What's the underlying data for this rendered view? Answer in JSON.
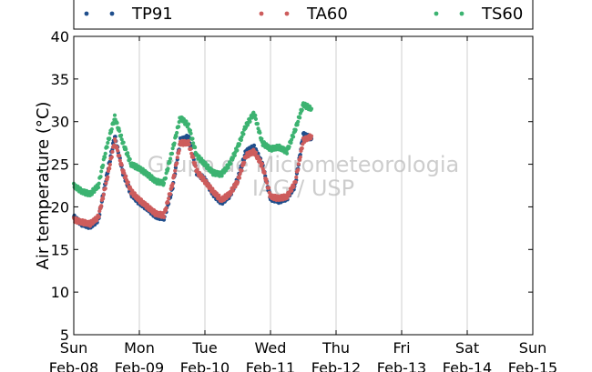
{
  "chart_data": {
    "type": "scatter",
    "title": "",
    "xlabel": "",
    "ylabel": "Air temperature (°C)",
    "ylim": [
      5,
      40
    ],
    "yticks": [
      5,
      10,
      15,
      20,
      25,
      30,
      35,
      40
    ],
    "xlim": [
      "2015-02-08",
      "2015-02-15"
    ],
    "xticks": [
      {
        "day": "Sun",
        "date": "Feb-08"
      },
      {
        "day": "Mon",
        "date": "Feb-09"
      },
      {
        "day": "Tue",
        "date": "Feb-10"
      },
      {
        "day": "Wed",
        "date": "Feb-11"
      },
      {
        "day": "Thu",
        "date": "Feb-12"
      },
      {
        "day": "Fri",
        "date": "Feb-13"
      },
      {
        "day": "Sat",
        "date": "Feb-14"
      },
      {
        "day": "Sun",
        "date": "Feb-15"
      }
    ],
    "grid": "vertical",
    "legend": {
      "placement": "top",
      "columns": 3
    },
    "watermark": [
      "Grupo de Micrometeorologia",
      "IAG / USP"
    ],
    "x": [
      "2015-02-08T00:00",
      "2015-02-08T03:00",
      "2015-02-08T06:00",
      "2015-02-08T09:00",
      "2015-02-08T12:00",
      "2015-02-08T15:00",
      "2015-02-08T18:00",
      "2015-02-08T21:00",
      "2015-02-09T00:00",
      "2015-02-09T03:00",
      "2015-02-09T06:00",
      "2015-02-09T09:00",
      "2015-02-09T12:00",
      "2015-02-09T15:00",
      "2015-02-09T18:00",
      "2015-02-09T21:00",
      "2015-02-10T00:00",
      "2015-02-10T03:00",
      "2015-02-10T06:00",
      "2015-02-10T09:00",
      "2015-02-10T12:00",
      "2015-02-10T15:00",
      "2015-02-10T18:00",
      "2015-02-10T21:00",
      "2015-02-11T00:00",
      "2015-02-11T03:00",
      "2015-02-11T06:00",
      "2015-02-11T09:00",
      "2015-02-11T12:00",
      "2015-02-11T15:00"
    ],
    "series": [
      {
        "name": "TP91",
        "color": "#1f4e8c",
        "values": [
          18.8,
          18.0,
          17.7,
          18.5,
          23.5,
          28.3,
          24.0,
          21.5,
          20.5,
          19.8,
          18.9,
          18.7,
          22.0,
          27.8,
          28.2,
          24.0,
          23.2,
          21.5,
          20.5,
          21.3,
          23.2,
          26.5,
          27.0,
          25.0,
          21.0,
          20.7,
          21.0,
          22.5,
          28.5,
          28.0
        ]
      },
      {
        "name": "TA60",
        "color": "#cd5c5c",
        "values": [
          18.5,
          18.2,
          18.0,
          18.8,
          23.0,
          27.8,
          24.2,
          21.8,
          20.8,
          20.0,
          19.2,
          19.0,
          22.5,
          27.5,
          27.5,
          24.2,
          23.0,
          21.8,
          20.8,
          21.5,
          23.0,
          26.0,
          26.5,
          24.8,
          21.2,
          21.0,
          21.2,
          22.8,
          27.8,
          28.3
        ]
      },
      {
        "name": "TS60",
        "color": "#3cb371",
        "values": [
          22.5,
          21.8,
          21.5,
          22.5,
          27.0,
          30.5,
          27.5,
          25.0,
          24.5,
          23.8,
          23.0,
          22.8,
          26.5,
          30.5,
          29.5,
          26.0,
          25.0,
          24.0,
          23.8,
          25.0,
          27.0,
          29.5,
          31.0,
          27.5,
          26.8,
          27.0,
          26.5,
          29.0,
          32.0,
          31.5
        ]
      }
    ]
  }
}
